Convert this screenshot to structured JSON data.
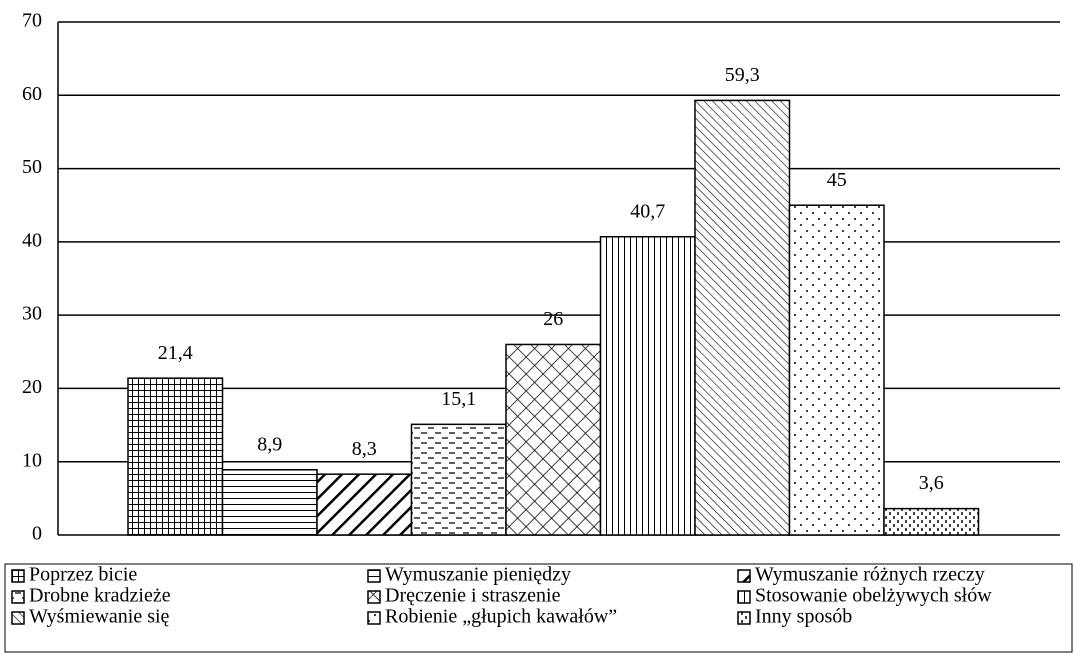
{
  "chart_data": {
    "type": "bar",
    "xlabel": "%",
    "ylim": [
      0,
      70
    ],
    "yticks": [
      0,
      10,
      20,
      30,
      40,
      50,
      60,
      70
    ],
    "grid": true,
    "series": [
      {
        "name": "Poprzez bicie",
        "values": [
          21.4
        ],
        "value_labels": [
          "21,4"
        ]
      },
      {
        "name": "Wymuszanie pieniędzy",
        "values": [
          8.9
        ],
        "value_labels": [
          "8,9"
        ]
      },
      {
        "name": "Wymuszanie różnych rzeczy",
        "values": [
          8.3
        ],
        "value_labels": [
          "8,3"
        ]
      },
      {
        "name": "Drobne kradzieże",
        "values": [
          15.1
        ],
        "value_labels": [
          "15,1"
        ]
      },
      {
        "name": "Dręczenie i straszenie",
        "values": [
          26
        ],
        "value_labels": [
          "26"
        ]
      },
      {
        "name": "Stosowanie obelżywych słów",
        "values": [
          40.7
        ],
        "value_labels": [
          "40,7"
        ]
      },
      {
        "name": "Wyśmiewanie się",
        "values": [
          59.3
        ],
        "value_labels": [
          "59,3"
        ]
      },
      {
        "name": "Robienie „głupich kawałów”",
        "values": [
          45
        ],
        "value_labels": [
          "45"
        ]
      },
      {
        "name": "Inny sposób",
        "values": [
          3.6
        ],
        "value_labels": [
          "3,6"
        ]
      }
    ]
  }
}
